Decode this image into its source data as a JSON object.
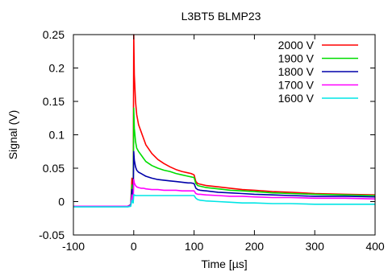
{
  "chart_data": {
    "type": "line",
    "title": "L3BT5 BLMP23",
    "xlabel": "Time [µs]",
    "ylabel": "Signal (V)",
    "xlim": [
      -100,
      400
    ],
    "ylim": [
      -0.05,
      0.25
    ],
    "x_ticks": [
      -100,
      0,
      100,
      200,
      300,
      400
    ],
    "y_ticks": [
      -0.05,
      0,
      0.05,
      0.1,
      0.15,
      0.2,
      0.25
    ],
    "x_tick_labels": [
      "-100",
      "0",
      "100",
      "200",
      "300",
      "400"
    ],
    "y_tick_labels": [
      "-0.05",
      "0",
      "0.05",
      "0.1",
      "0.15",
      "0.2",
      "0.25"
    ],
    "grid": false,
    "legend": "top-right",
    "series": [
      {
        "name": "2000 V",
        "color": "#ff0000",
        "x": [
          -100,
          -10,
          -5,
          -3,
          -1,
          0,
          1,
          3,
          5,
          8,
          12,
          16,
          20,
          30,
          40,
          50,
          60,
          70,
          80,
          90,
          95,
          100,
          103,
          106,
          110,
          120,
          140,
          160,
          180,
          200,
          230,
          260,
          300,
          350,
          400
        ],
        "y": [
          -0.007,
          -0.007,
          -0.005,
          0.035,
          0.0,
          0.25,
          0.19,
          0.15,
          0.13,
          0.115,
          0.105,
          0.095,
          0.085,
          0.072,
          0.063,
          0.057,
          0.052,
          0.048,
          0.045,
          0.043,
          0.042,
          0.04,
          0.03,
          0.027,
          0.026,
          0.024,
          0.022,
          0.02,
          0.018,
          0.017,
          0.015,
          0.014,
          0.012,
          0.011,
          0.01
        ]
      },
      {
        "name": "1900 V",
        "color": "#00dd00",
        "x": [
          -100,
          -10,
          -5,
          -3,
          -1,
          0,
          1,
          3,
          5,
          8,
          12,
          16,
          20,
          30,
          40,
          50,
          60,
          70,
          80,
          90,
          95,
          100,
          103,
          106,
          110,
          120,
          140,
          160,
          180,
          200,
          230,
          260,
          300,
          350,
          400
        ],
        "y": [
          -0.007,
          -0.007,
          -0.005,
          0.025,
          0.0,
          0.14,
          0.11,
          0.09,
          0.08,
          0.075,
          0.07,
          0.065,
          0.06,
          0.054,
          0.05,
          0.047,
          0.045,
          0.042,
          0.04,
          0.038,
          0.037,
          0.036,
          0.027,
          0.024,
          0.023,
          0.021,
          0.019,
          0.017,
          0.016,
          0.015,
          0.013,
          0.012,
          0.011,
          0.01,
          0.009
        ]
      },
      {
        "name": "1800 V",
        "color": "#0000aa",
        "x": [
          -100,
          -10,
          -5,
          -3,
          -1,
          0,
          1,
          3,
          5,
          8,
          12,
          16,
          20,
          30,
          40,
          50,
          60,
          70,
          80,
          90,
          95,
          100,
          103,
          106,
          110,
          120,
          140,
          160,
          180,
          200,
          230,
          260,
          300,
          350,
          400
        ],
        "y": [
          -0.007,
          -0.007,
          -0.005,
          0.018,
          0.0,
          0.075,
          0.062,
          0.052,
          0.047,
          0.044,
          0.042,
          0.04,
          0.038,
          0.035,
          0.033,
          0.032,
          0.031,
          0.03,
          0.029,
          0.028,
          0.028,
          0.027,
          0.02,
          0.018,
          0.017,
          0.016,
          0.014,
          0.013,
          0.012,
          0.011,
          0.01,
          0.009,
          0.008,
          0.008,
          0.007
        ]
      },
      {
        "name": "1700 V",
        "color": "#ff00ff",
        "x": [
          -100,
          -10,
          -5,
          -3,
          -1,
          0,
          1,
          3,
          5,
          8,
          12,
          16,
          20,
          30,
          40,
          50,
          60,
          70,
          80,
          90,
          95,
          100,
          103,
          106,
          110,
          120,
          140,
          160,
          180,
          200,
          230,
          260,
          300,
          350,
          400
        ],
        "y": [
          -0.007,
          -0.007,
          -0.006,
          0.01,
          -0.001,
          0.033,
          0.028,
          0.024,
          0.022,
          0.021,
          0.02,
          0.02,
          0.019,
          0.018,
          0.018,
          0.017,
          0.017,
          0.017,
          0.016,
          0.016,
          0.016,
          0.016,
          0.012,
          0.011,
          0.011,
          0.01,
          0.009,
          0.008,
          0.008,
          0.007,
          0.006,
          0.006,
          0.005,
          0.005,
          0.004
        ]
      },
      {
        "name": "1600 V",
        "color": "#00e5e5",
        "x": [
          -100,
          -10,
          -5,
          -3,
          -1,
          0,
          1,
          3,
          5,
          8,
          12,
          16,
          20,
          30,
          40,
          50,
          60,
          70,
          80,
          90,
          95,
          100,
          103,
          106,
          110,
          120,
          140,
          160,
          180,
          200,
          230,
          260,
          300,
          350,
          400
        ],
        "y": [
          -0.008,
          -0.008,
          -0.007,
          0.002,
          -0.002,
          0.01,
          0.01,
          0.009,
          0.009,
          0.009,
          0.009,
          0.009,
          0.009,
          0.009,
          0.009,
          0.009,
          0.009,
          0.009,
          0.009,
          0.009,
          0.009,
          0.009,
          0.005,
          0.003,
          0.002,
          0.001,
          0.0,
          -0.001,
          -0.002,
          -0.002,
          -0.003,
          -0.003,
          -0.004,
          -0.004,
          -0.004
        ]
      }
    ]
  }
}
